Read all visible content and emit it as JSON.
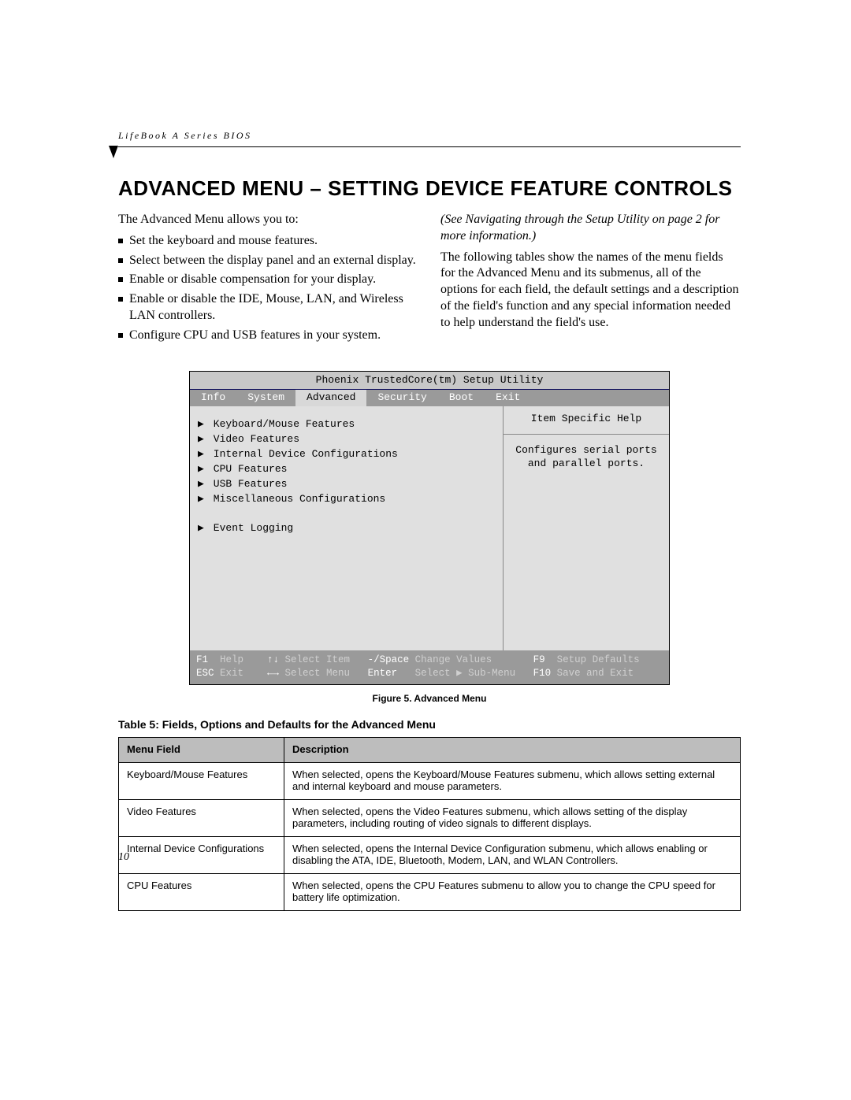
{
  "header": {
    "label": "LifeBook A Series BIOS"
  },
  "title": "ADVANCED MENU – SETTING DEVICE FEATURE CONTROLS",
  "intro": "The Advanced Menu allows you to:",
  "bullets": [
    "Set the keyboard and mouse features.",
    "Select between the display panel and an external display.",
    "Enable or disable compensation for your display.",
    "Enable or disable the IDE, Mouse, LAN, and Wireless LAN controllers.",
    "Configure CPU and USB features in your system."
  ],
  "right_col": {
    "ref": "(See Navigating through the Setup Utility on page 2 for more information.)",
    "para": "The following tables show the names of the menu fields for the Advanced Menu and its submenus, all of the options for each field, the default settings and a description of the field's function and any special information needed to help understand the field's use."
  },
  "bios": {
    "title": "Phoenix TrustedCore(tm) Setup Utility",
    "tabs": [
      "Info",
      "System",
      "Advanced",
      "Security",
      "Boot",
      "Exit"
    ],
    "active_tab": "Advanced",
    "items": [
      "Keyboard/Mouse Features",
      "Video Features",
      "Internal Device Configurations",
      "CPU Features",
      "USB Features",
      "Miscellaneous Configurations"
    ],
    "extra_item": "Event Logging",
    "help_title": "Item Specific Help",
    "help_body": "Configures serial ports and parallel ports.",
    "footer": {
      "r1": {
        "k1": "F1",
        "v1": "Help",
        "k2": "↑↓",
        "v2": "Select Item",
        "k3": "-/Space",
        "v3": "Change Values",
        "k4": "F9",
        "v4": "Setup Defaults"
      },
      "r2": {
        "k1": "ESC",
        "v1": "Exit",
        "k2": "←→",
        "v2": "Select Menu",
        "k3": "Enter",
        "v3": "Select ▶ Sub-Menu",
        "k4": "F10",
        "v4": "Save and Exit"
      }
    }
  },
  "figure_caption": "Figure 5.  Advanced Menu",
  "table_title": "Table 5: Fields, Options and Defaults for the Advanced Menu",
  "table": {
    "headers": [
      "Menu Field",
      "Description"
    ],
    "rows": [
      [
        "Keyboard/Mouse Features",
        "When selected, opens the Keyboard/Mouse Features submenu, which allows setting external and internal keyboard and mouse parameters."
      ],
      [
        "Video Features",
        "When selected, opens the Video Features submenu, which allows setting of the display parameters, including routing of video signals to different displays."
      ],
      [
        "Internal Device Configurations",
        "When selected, opens the Internal Device Configuration submenu, which allows enabling or disabling the ATA, IDE, Bluetooth, Modem, LAN, and WLAN Controllers."
      ],
      [
        "CPU Features",
        "When selected, opens the CPU Features submenu to allow you to change the CPU speed for battery life optimization."
      ]
    ]
  },
  "page_number": "10"
}
